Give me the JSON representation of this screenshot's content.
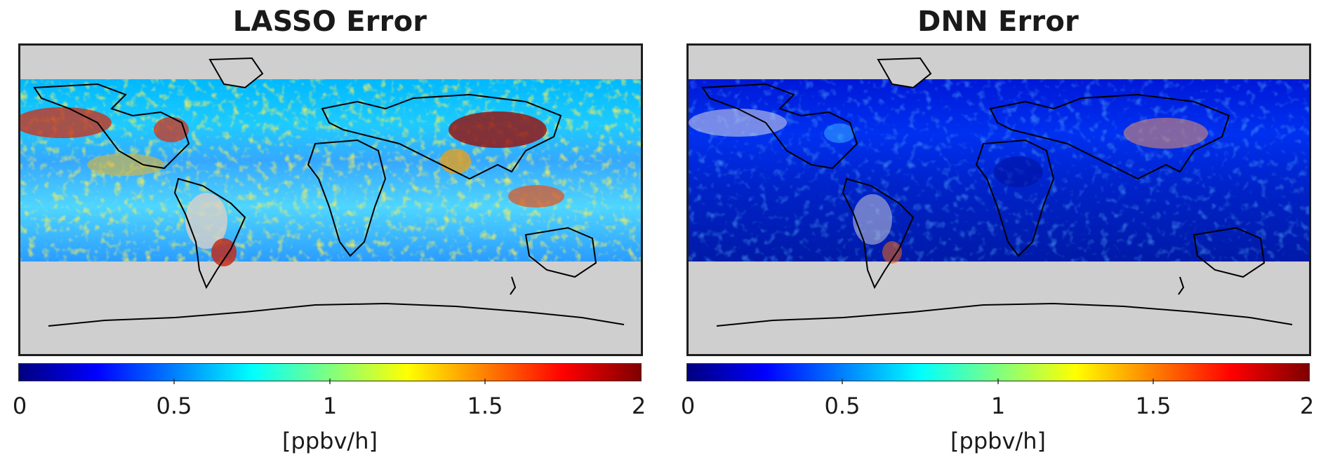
{
  "panels": [
    {
      "id": "lasso",
      "title": "LASSO Error",
      "colorbar": {
        "ticks": [
          "0",
          "0.5",
          "1",
          "1.5",
          "2"
        ],
        "tick_values": [
          0,
          0.5,
          1,
          1.5,
          2
        ],
        "range": [
          0,
          2
        ],
        "unit": "[ppbv/h]",
        "colormap": "jet"
      },
      "field_level": "high"
    },
    {
      "id": "dnn",
      "title": "DNN Error",
      "colorbar": {
        "ticks": [
          "0",
          "0.5",
          "1",
          "1.5",
          "2"
        ],
        "tick_values": [
          0,
          0.5,
          1,
          1.5,
          2
        ],
        "range": [
          0,
          2
        ],
        "unit": "[ppbv/h]",
        "colormap": "jet"
      },
      "field_level": "low"
    }
  ],
  "colors": {
    "no_data": "#cfcfcf",
    "coastline": "#000000",
    "jet": [
      "#00007f",
      "#0000ff",
      "#007fff",
      "#00ffff",
      "#7fff7f",
      "#ffff00",
      "#ff7f00",
      "#ff0000",
      "#7f0000"
    ]
  }
}
